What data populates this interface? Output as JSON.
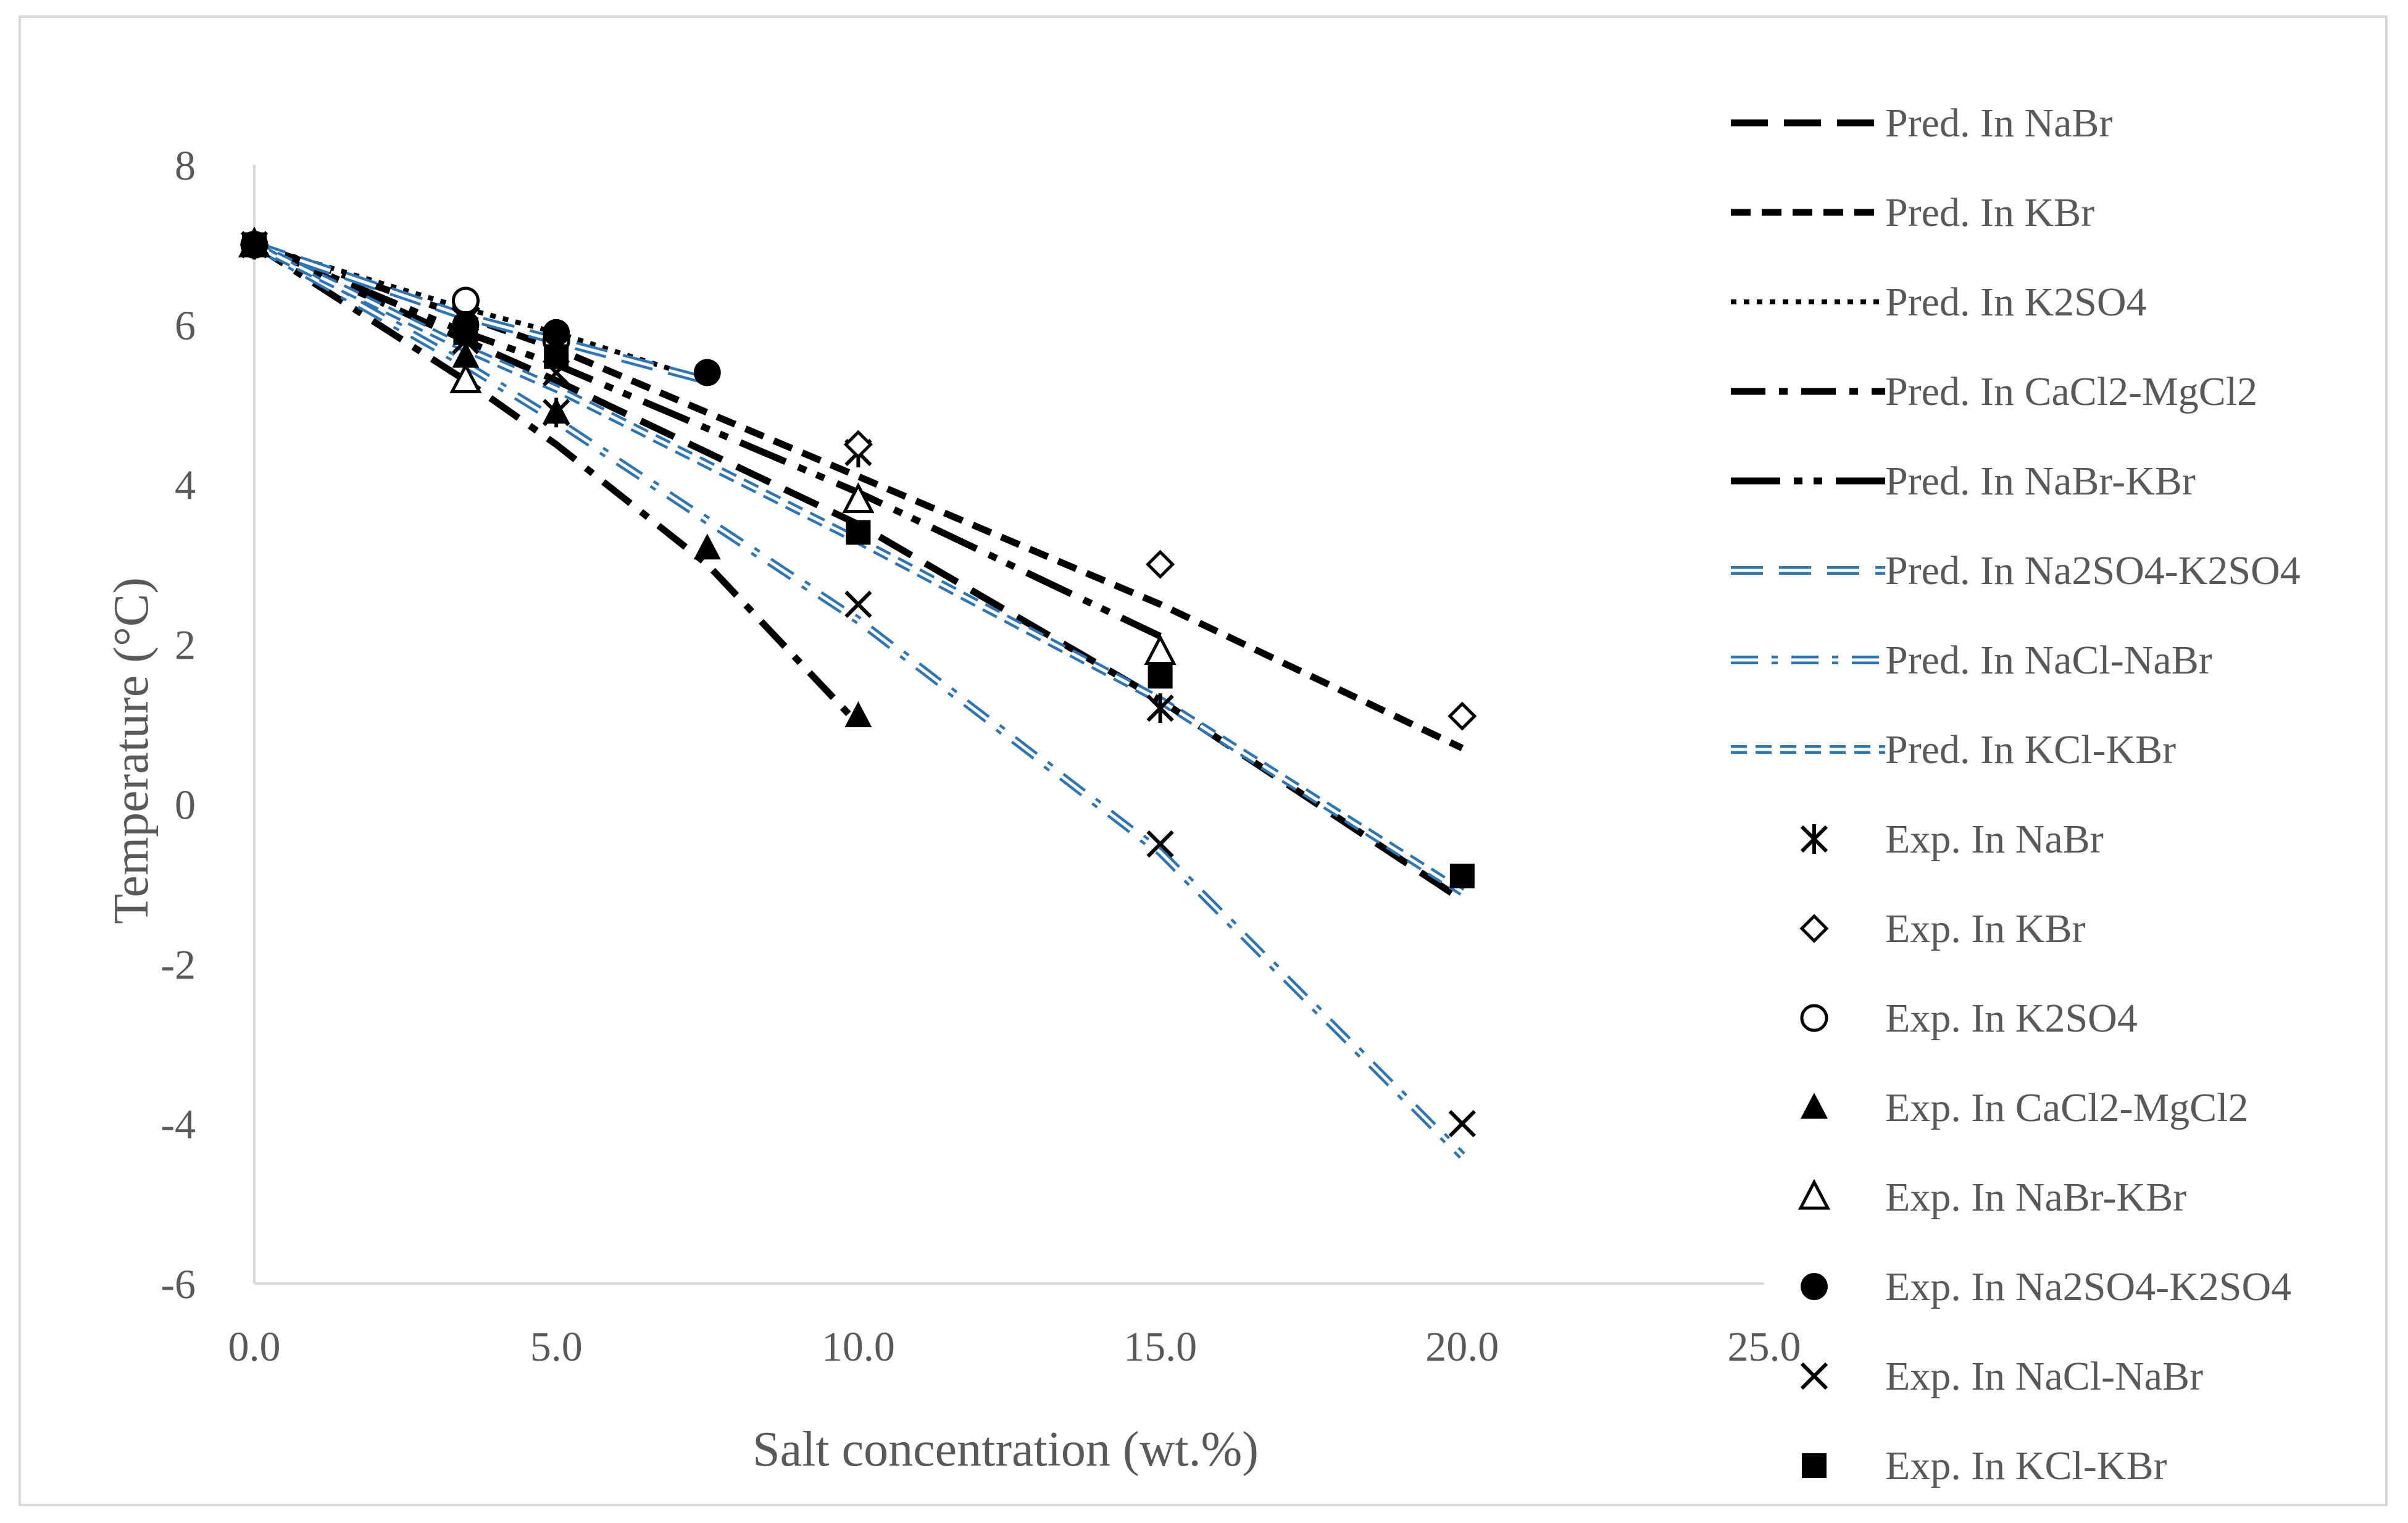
{
  "chart_data": {
    "type": "scatter",
    "title": "",
    "xlabel": "Salt concentration (wt.%)",
    "ylabel": "Temperature (°C)",
    "xlim": [
      0,
      25
    ],
    "ylim": [
      -6,
      8
    ],
    "x_ticks": [
      "0.0",
      "5.0",
      "10.0",
      "15.0",
      "20.0",
      "25.0"
    ],
    "y_ticks": [
      "-6",
      "-4",
      "-2",
      "0",
      "2",
      "4",
      "6",
      "8"
    ],
    "grid": false,
    "legend_position": "right",
    "series": [
      {
        "name": "Pred. In NaBr",
        "kind": "line",
        "style": "dash-long",
        "color": "#000000",
        "x": [
          0,
          3.5,
          5,
          10,
          15,
          20
        ],
        "y": [
          7.0,
          5.8,
          5.3,
          3.5,
          1.3,
          -1.2
        ]
      },
      {
        "name": "Pred. In KBr",
        "kind": "line",
        "style": "dash-short",
        "color": "#000000",
        "x": [
          0,
          3.5,
          5,
          10,
          15,
          20
        ],
        "y": [
          7.0,
          6.1,
          5.7,
          4.1,
          2.5,
          0.7
        ]
      },
      {
        "name": "Pred. In K2SO4",
        "kind": "line",
        "style": "dot",
        "color": "#000000",
        "x": [
          0,
          3.5,
          5,
          7.5
        ],
        "y": [
          7.0,
          6.2,
          5.9,
          5.3
        ]
      },
      {
        "name": "Pred. In CaCl2-MgCl2",
        "kind": "line",
        "style": "dash-dot",
        "color": "#000000",
        "x": [
          0,
          3.5,
          5,
          7.5,
          10
        ],
        "y": [
          7.0,
          5.3,
          4.5,
          3.0,
          1.0
        ]
      },
      {
        "name": "Pred. In NaBr-KBr",
        "kind": "line",
        "style": "long-dash-dot-dot",
        "color": "#000000",
        "x": [
          0,
          3.5,
          5,
          10,
          15
        ],
        "y": [
          7.0,
          5.9,
          5.5,
          3.9,
          2.1
        ]
      },
      {
        "name": "Pred. In Na2SO4-K2SO4",
        "kind": "line",
        "style": "dash-long-double",
        "color": "#2e75b6",
        "x": [
          0,
          3.5,
          5,
          7.5
        ],
        "y": [
          7.0,
          6.1,
          5.8,
          5.3
        ]
      },
      {
        "name": "Pred. In NaCl-NaBr",
        "kind": "line",
        "style": "dash-dot-double",
        "color": "#2e75b6",
        "x": [
          0,
          3.5,
          5,
          10,
          15,
          20
        ],
        "y": [
          7.0,
          5.5,
          4.8,
          2.3,
          -0.6,
          -4.4
        ]
      },
      {
        "name": "Pred. In KCl-KBr",
        "kind": "line",
        "style": "dash-short-double",
        "color": "#2e75b6",
        "x": [
          0,
          3.5,
          5,
          10,
          15,
          20
        ],
        "y": [
          7.0,
          5.7,
          5.2,
          3.3,
          1.3,
          -1.1
        ]
      },
      {
        "name": "Exp. In NaBr",
        "kind": "marker",
        "marker": "asterisk",
        "color": "#000000",
        "x": [
          0,
          3.5,
          5,
          10,
          15
        ],
        "y": [
          7.0,
          6.1,
          4.9,
          4.4,
          1.2
        ]
      },
      {
        "name": "Exp. In KBr",
        "kind": "marker",
        "marker": "diamond-open",
        "color": "#000000",
        "x": [
          0,
          3.5,
          10,
          15,
          20
        ],
        "y": [
          7.0,
          6.2,
          4.5,
          3.0,
          1.1
        ]
      },
      {
        "name": "Exp. In K2SO4",
        "kind": "marker",
        "marker": "circle-open",
        "color": "#000000",
        "x": [
          0,
          3.5,
          5
        ],
        "y": [
          7.0,
          6.3,
          5.8
        ]
      },
      {
        "name": "Exp. In CaCl2-MgCl2",
        "kind": "marker",
        "marker": "triangle-filled",
        "color": "#000000",
        "x": [
          0,
          3.5,
          5,
          7.5,
          10
        ],
        "y": [
          7.0,
          5.6,
          4.9,
          3.2,
          1.1
        ]
      },
      {
        "name": "Exp. In NaBr-KBr",
        "kind": "marker",
        "marker": "triangle-open",
        "color": "#000000",
        "x": [
          0,
          3.5,
          10,
          15
        ],
        "y": [
          7.0,
          5.3,
          3.8,
          1.9
        ]
      },
      {
        "name": "Exp. In Na2SO4-K2SO4",
        "kind": "marker",
        "marker": "circle-filled",
        "color": "#000000",
        "x": [
          0,
          3.5,
          5,
          7.5
        ],
        "y": [
          7.0,
          6.0,
          5.9,
          5.4
        ]
      },
      {
        "name": "Exp. In NaCl-NaBr",
        "kind": "marker",
        "marker": "x",
        "color": "#000000",
        "x": [
          0,
          3.5,
          5,
          10,
          15,
          20
        ],
        "y": [
          7.0,
          5.8,
          5.4,
          2.5,
          -0.5,
          -4.0
        ]
      },
      {
        "name": "Exp. In KCl-KBr",
        "kind": "marker",
        "marker": "square-filled",
        "color": "#000000",
        "x": [
          0,
          3.5,
          5,
          10,
          15,
          20
        ],
        "y": [
          7.0,
          5.9,
          5.6,
          3.4,
          1.6,
          -0.9
        ]
      }
    ]
  }
}
